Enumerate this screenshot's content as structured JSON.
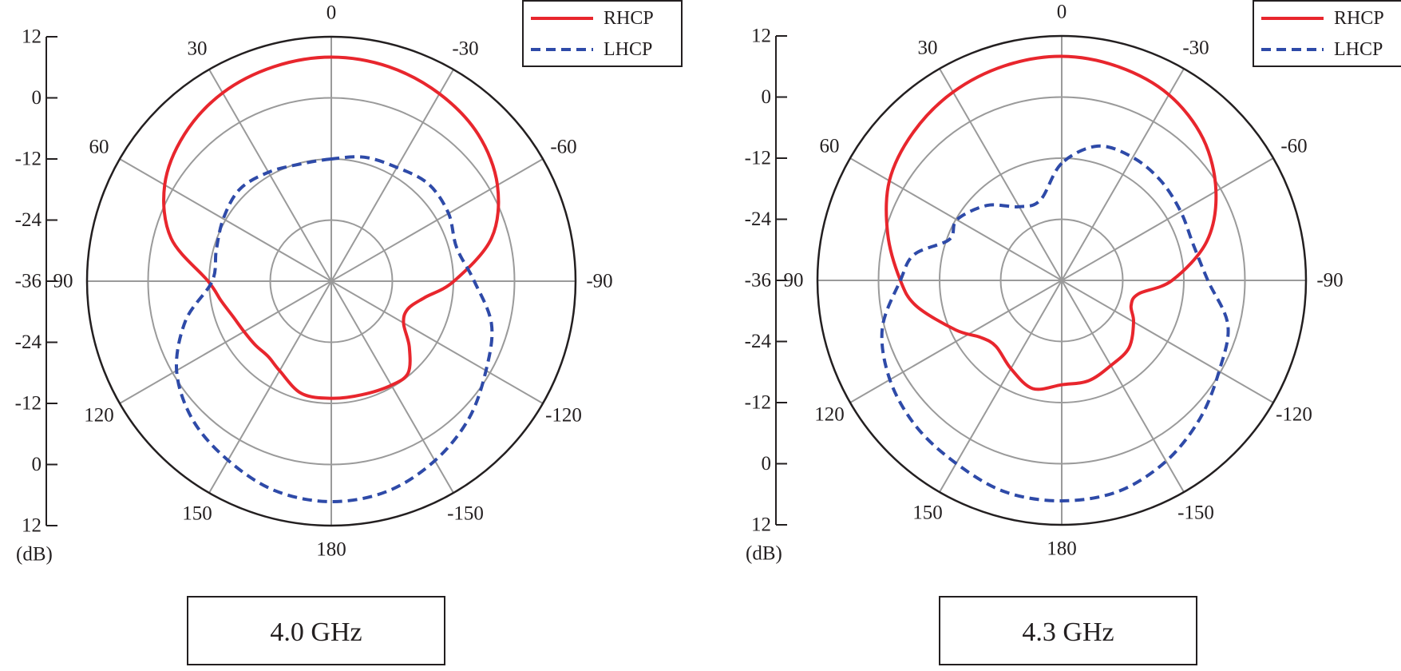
{
  "chart_data": [
    {
      "type": "polar-line",
      "caption": "4.0 GHz",
      "radial_unit": "(dB)",
      "radial_ticks": [
        "12",
        "0",
        "-12",
        "-24",
        "-36",
        "-24",
        "-12",
        "0",
        "12"
      ],
      "radial_range": [
        -36,
        12
      ],
      "angle_labels": [
        {
          "angle": 0,
          "text": "0"
        },
        {
          "angle": -30,
          "text": "-30"
        },
        {
          "angle": -60,
          "text": "-60"
        },
        {
          "angle": -90,
          "text": "-90"
        },
        {
          "angle": -120,
          "text": "-120"
        },
        {
          "angle": -150,
          "text": "-150"
        },
        {
          "angle": 180,
          "text": "180"
        },
        {
          "angle": 150,
          "text": "150"
        },
        {
          "angle": 120,
          "text": "120"
        },
        {
          "angle": 90,
          "text": "90"
        },
        {
          "angle": 60,
          "text": "60"
        },
        {
          "angle": 30,
          "text": "30"
        }
      ],
      "legend_position": "top-right",
      "grid": true,
      "series": [
        {
          "name": "RHCP",
          "color": "#e8262d",
          "dash": "solid",
          "angles": [
            0,
            15,
            30,
            45,
            60,
            75,
            90,
            100,
            110,
            120,
            130,
            140,
            150,
            165,
            180,
            -165,
            -150,
            -140,
            -130,
            -120,
            -110,
            -100,
            -90,
            -75,
            -60,
            -45,
            -30,
            -15
          ],
          "values": [
            8,
            7.6,
            6.7,
            4.8,
            1.8,
            -3.4,
            -11.8,
            -14,
            -15.5,
            -16.2,
            -16.5,
            -16.7,
            -15.7,
            -13.2,
            -13,
            -12.9,
            -12.4,
            -12.5,
            -16,
            -19.6,
            -20,
            -17.4,
            -11.9,
            -3.4,
            1.7,
            4.8,
            6.5,
            7.6
          ]
        },
        {
          "name": "LHCP",
          "color": "#2e4aa8",
          "dash": "dashed",
          "angles": [
            0,
            15,
            30,
            45,
            60,
            75,
            90,
            105,
            120,
            135,
            150,
            165,
            180,
            -165,
            -150,
            -135,
            -120,
            -105,
            -90,
            -75,
            -60,
            -45,
            -30,
            -15
          ],
          "values": [
            -12,
            -12.2,
            -11.3,
            -10.5,
            -11.5,
            -12.6,
            -12.6,
            -6.4,
            -0.9,
            2.5,
            4.6,
            6.6,
            7.3,
            6.7,
            4.7,
            2.2,
            -0.9,
            -3.4,
            -7.9,
            -10.5,
            -9.4,
            -9,
            -10.2,
            -10.8
          ]
        }
      ]
    },
    {
      "type": "polar-line",
      "caption": "4.3 GHz",
      "radial_unit": "(dB)",
      "radial_ticks": [
        "12",
        "0",
        "-12",
        "-24",
        "-36",
        "-24",
        "-12",
        "0",
        "12"
      ],
      "radial_range": [
        -36,
        12
      ],
      "angle_labels": [
        {
          "angle": 0,
          "text": "0"
        },
        {
          "angle": -30,
          "text": "-30"
        },
        {
          "angle": -60,
          "text": "-60"
        },
        {
          "angle": -90,
          "text": "-90"
        },
        {
          "angle": -120,
          "text": "-120"
        },
        {
          "angle": -150,
          "text": "-150"
        },
        {
          "angle": 180,
          "text": "180"
        },
        {
          "angle": 150,
          "text": "150"
        },
        {
          "angle": 120,
          "text": "120"
        },
        {
          "angle": 90,
          "text": "90"
        },
        {
          "angle": 60,
          "text": "60"
        },
        {
          "angle": 30,
          "text": "30"
        }
      ],
      "legend_position": "top-right",
      "grid": true,
      "series": [
        {
          "name": "RHCP",
          "color": "#e8262d",
          "dash": "solid",
          "angles": [
            0,
            15,
            30,
            45,
            60,
            75,
            90,
            100,
            115,
            125,
            135,
            150,
            165,
            180,
            -165,
            -150,
            -135,
            -120,
            -110,
            -100,
            -90,
            -75,
            -60,
            -45,
            -30,
            -15
          ],
          "values": [
            8,
            7.6,
            6.7,
            5.2,
            3.1,
            -0.6,
            -4.3,
            -7,
            -13,
            -16.5,
            -17.7,
            -16,
            -14,
            -15.5,
            -15.6,
            -16.7,
            -17.3,
            -19.7,
            -21.5,
            -20.7,
            -14.3,
            -6.5,
            -1,
            3.3,
            6.1,
            7.4
          ]
        },
        {
          "name": "LHCP",
          "color": "#2e4aa8",
          "dash": "dashed",
          "angles": [
            0,
            15,
            30,
            45,
            60,
            70,
            80,
            90,
            105,
            120,
            135,
            150,
            165,
            180,
            -165,
            -150,
            -135,
            -120,
            -105,
            -90,
            -75,
            -60,
            -45,
            -30,
            -15
          ],
          "values": [
            -13,
            -19.7,
            -19.3,
            -15.2,
            -12.2,
            -12.5,
            -6.6,
            -4.3,
            0.5,
            3,
            4.5,
            5.5,
            7,
            7.3,
            6.9,
            5,
            2.4,
            -0.3,
            -2.2,
            -7.3,
            -9.2,
            -9,
            -8.4,
            -8.1,
            -8.7
          ]
        }
      ]
    }
  ]
}
